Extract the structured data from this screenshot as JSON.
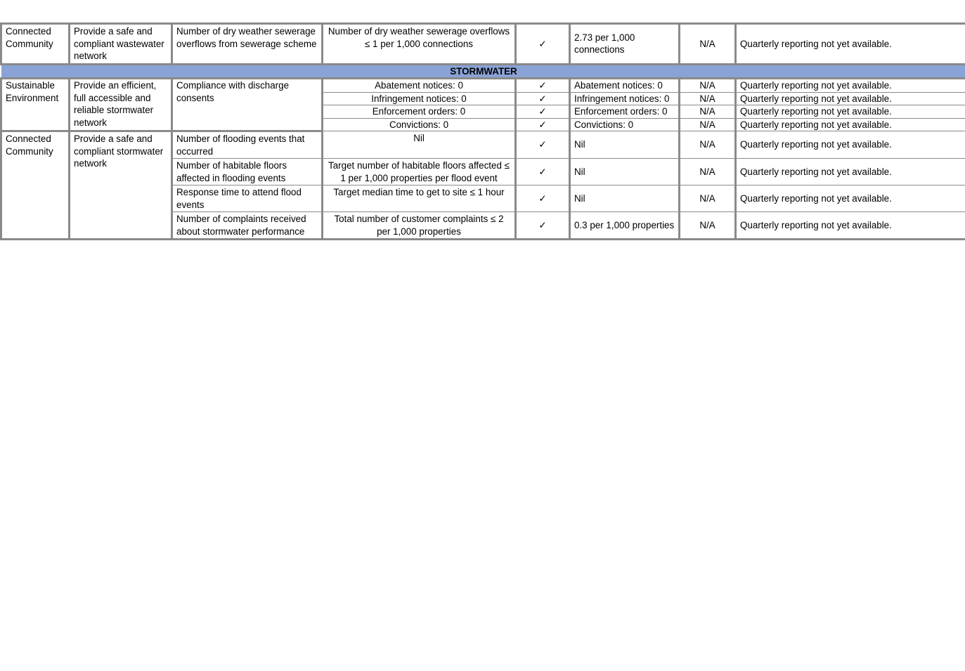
{
  "rows_top": [
    {
      "focus": "Connected Community",
      "objective": "Provide a safe and compliant wastewater network",
      "measure": "Number of dry weather sewerage overflows from sewerage scheme",
      "target": "Number of dry weather sewerage overflows ≤ 1 per 1,000 connections",
      "check": "✓",
      "result": "2.73 per 1,000 connections",
      "status": "N/A",
      "comment": "Quarterly reporting not yet available."
    }
  ],
  "section": "STORMWATER",
  "group1": {
    "focus": "Sustainable Environment",
    "objective": "Provide an efficient, full accessible and reliable stormwater network",
    "measure": "Compliance with discharge consents",
    "rows": [
      {
        "target": "Abatement notices: 0",
        "check": "✓",
        "result": "Abatement notices: 0",
        "status": "N/A",
        "comment": "Quarterly reporting not yet available."
      },
      {
        "target": "Infringement notices: 0",
        "check": "✓",
        "result": "Infringement notices: 0",
        "status": "N/A",
        "comment": "Quarterly reporting not yet available."
      },
      {
        "target": "Enforcement orders: 0",
        "check": "✓",
        "result": "Enforcement orders: 0",
        "status": "N/A",
        "comment": "Quarterly reporting not yet available."
      },
      {
        "target": "Convictions: 0",
        "check": "✓",
        "result": "Convictions: 0",
        "status": "N/A",
        "comment": "Quarterly reporting not yet available."
      }
    ]
  },
  "group2": {
    "focus": "Connected Community",
    "objective": "Provide a safe and compliant stormwater network",
    "rows": [
      {
        "measure": "Number of flooding events that occurred",
        "target": "Nil",
        "check": "✓",
        "result": "Nil",
        "status": "N/A",
        "comment": "Quarterly reporting not yet available."
      },
      {
        "measure": "Number of habitable floors affected in flooding events",
        "target": "Target number of habitable floors affected ≤ 1 per 1,000 properties per flood event",
        "check": "✓",
        "result": "Nil",
        "status": "N/A",
        "comment": "Quarterly reporting not yet available."
      },
      {
        "measure": "Response time to attend flood events",
        "target": "Target median time to get to site ≤ 1 hour",
        "check": "✓",
        "result": "Nil",
        "status": "N/A",
        "comment": "Quarterly reporting not yet available."
      },
      {
        "measure": "Number of complaints received about stormwater performance",
        "target": "Total number of customer complaints ≤ 2 per 1,000 properties",
        "check": "✓",
        "result": "0.3 per 1,000 properties",
        "status": "N/A",
        "comment": "Quarterly reporting not yet available."
      }
    ]
  }
}
